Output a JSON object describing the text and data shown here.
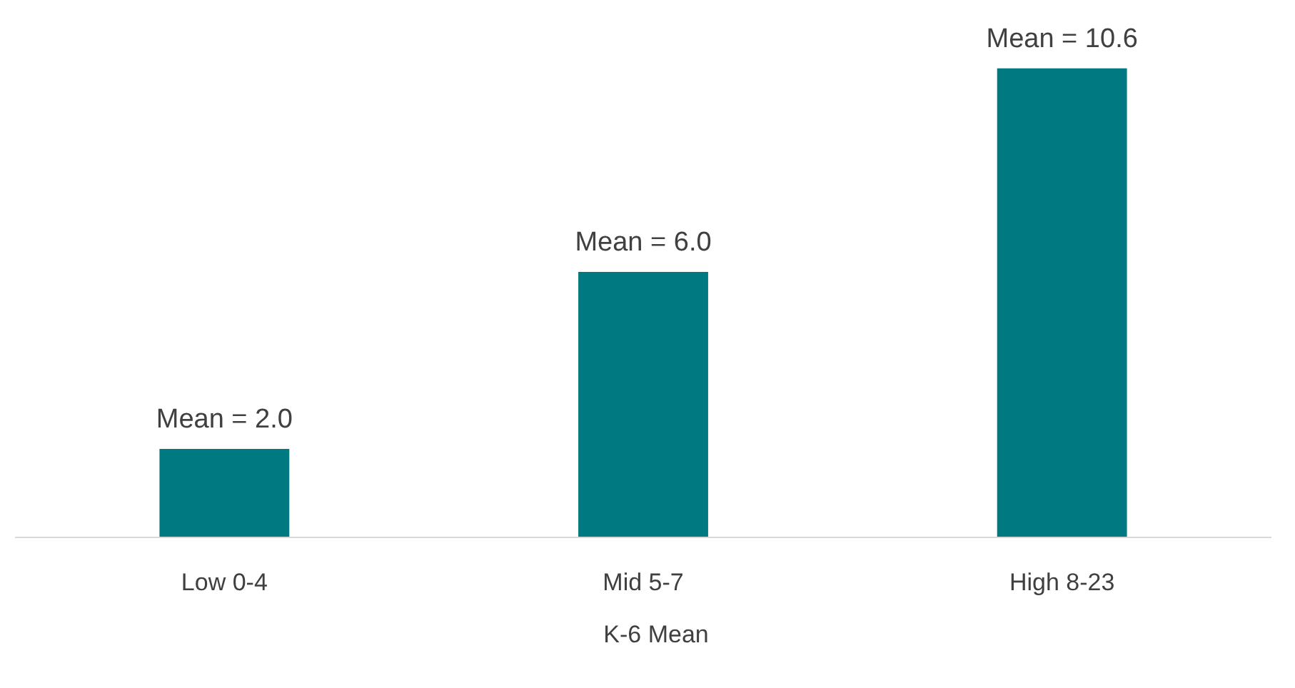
{
  "chart_data": {
    "type": "bar",
    "categories": [
      "Low 0-4",
      "Mid 5-7",
      "High 8-23"
    ],
    "series": [
      {
        "name": "K-6 Mean",
        "color": "#007a80",
        "values": [
          2.0,
          6.0,
          10.6
        ],
        "value_labels": [
          "Mean = 2.0",
          "Mean = 6.0",
          "Mean = 10.6"
        ]
      }
    ],
    "legend": "bottom"
  }
}
